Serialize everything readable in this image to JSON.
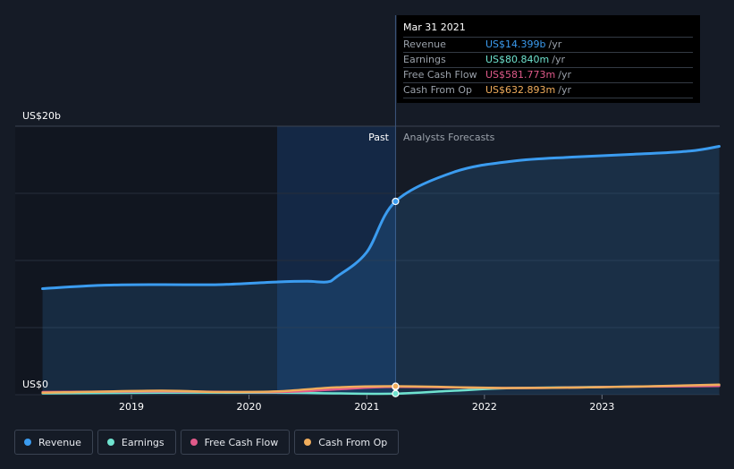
{
  "tooltip": {
    "date": "Mar 31 2021",
    "rows": [
      {
        "label": "Revenue",
        "value": "US$14.399b",
        "unit": "/yr",
        "color": "#3b9cf0"
      },
      {
        "label": "Earnings",
        "value": "US$80.840m",
        "unit": "/yr",
        "color": "#6fe3cf"
      },
      {
        "label": "Free Cash Flow",
        "value": "US$581.773m",
        "unit": "/yr",
        "color": "#e05a8a"
      },
      {
        "label": "Cash From Op",
        "value": "US$632.893m",
        "unit": "/yr",
        "color": "#f0ad5c"
      }
    ]
  },
  "legend": [
    {
      "label": "Revenue",
      "color": "#3b9cf0"
    },
    {
      "label": "Earnings",
      "color": "#6fe3cf"
    },
    {
      "label": "Free Cash Flow",
      "color": "#e05a8a"
    },
    {
      "label": "Cash From Op",
      "color": "#f0ad5c"
    }
  ],
  "chart_data": {
    "type": "area",
    "y_top_label": "US$20b",
    "y_bottom_label": "US$0",
    "ylim": [
      0,
      20
    ],
    "y_unit": "US$ billions",
    "x_ticks": [
      "2019",
      "2020",
      "2021",
      "2022",
      "2023"
    ],
    "divider_date": "2021-03-31",
    "past_label": "Past",
    "forecast_label": "Analysts Forecasts",
    "series": [
      {
        "name": "Revenue",
        "color": "#3b9cf0",
        "points": [
          [
            "2018-03-31",
            7.9
          ],
          [
            "2018-09-30",
            8.15
          ],
          [
            "2019-03-31",
            8.2
          ],
          [
            "2019-09-30",
            8.2
          ],
          [
            "2020-03-31",
            8.4
          ],
          [
            "2020-06-30",
            8.45
          ],
          [
            "2020-08-31",
            8.4
          ],
          [
            "2020-09-30",
            8.8
          ],
          [
            "2020-12-31",
            10.6
          ],
          [
            "2021-03-31",
            14.399
          ],
          [
            "2021-09-30",
            16.6
          ],
          [
            "2022-03-31",
            17.4
          ],
          [
            "2022-09-30",
            17.7
          ],
          [
            "2023-03-31",
            17.9
          ],
          [
            "2023-09-30",
            18.15
          ],
          [
            "2023-12-31",
            18.5
          ]
        ]
      },
      {
        "name": "Earnings",
        "color": "#6fe3cf",
        "points": [
          [
            "2018-03-31",
            0.1
          ],
          [
            "2019-03-31",
            0.15
          ],
          [
            "2020-03-31",
            0.15
          ],
          [
            "2020-09-30",
            0.1
          ],
          [
            "2021-03-31",
            0.081
          ],
          [
            "2021-09-30",
            0.3
          ],
          [
            "2022-03-31",
            0.5
          ],
          [
            "2023-03-31",
            0.6
          ],
          [
            "2023-12-31",
            0.7
          ]
        ]
      },
      {
        "name": "Free Cash Flow",
        "color": "#e05a8a",
        "points": [
          [
            "2018-03-31",
            0.2
          ],
          [
            "2019-03-31",
            0.25
          ],
          [
            "2020-03-31",
            0.2
          ],
          [
            "2020-09-30",
            0.4
          ],
          [
            "2021-03-31",
            0.582
          ],
          [
            "2022-03-31",
            0.5
          ],
          [
            "2023-03-31",
            0.6
          ],
          [
            "2023-12-31",
            0.65
          ]
        ]
      },
      {
        "name": "Cash From Op",
        "color": "#f0ad5c",
        "points": [
          [
            "2018-03-31",
            0.15
          ],
          [
            "2019-03-31",
            0.3
          ],
          [
            "2019-09-30",
            0.2
          ],
          [
            "2020-03-31",
            0.25
          ],
          [
            "2020-09-30",
            0.55
          ],
          [
            "2021-03-31",
            0.633
          ],
          [
            "2022-03-31",
            0.5
          ],
          [
            "2023-03-31",
            0.6
          ],
          [
            "2023-12-31",
            0.75
          ]
        ]
      }
    ]
  }
}
